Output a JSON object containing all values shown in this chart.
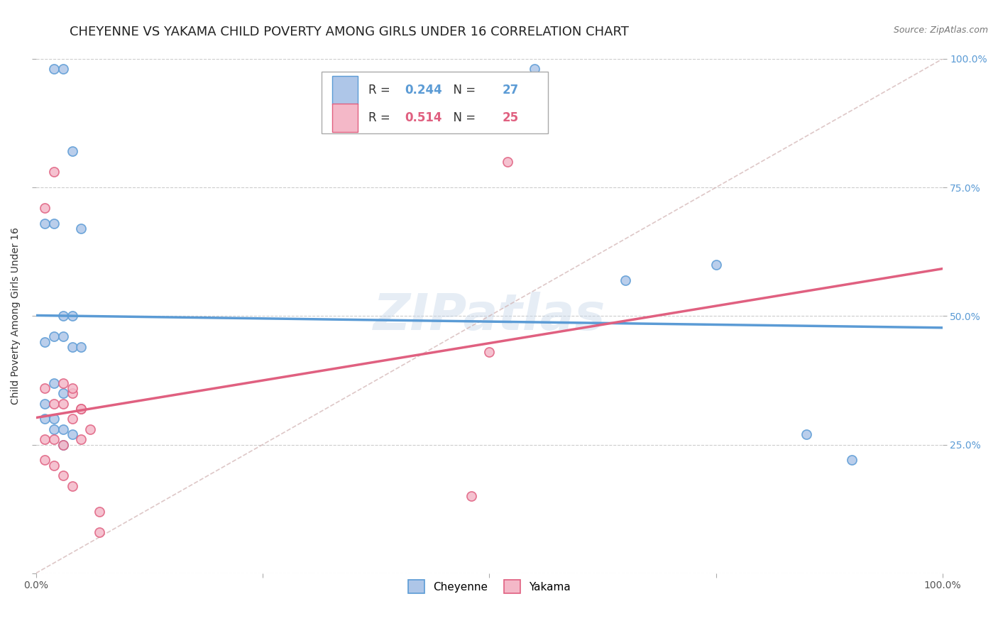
{
  "title": "CHEYENNE VS YAKAMA CHILD POVERTY AMONG GIRLS UNDER 16 CORRELATION CHART",
  "source": "Source: ZipAtlas.com",
  "ylabel": "Child Poverty Among Girls Under 16",
  "cheyenne_x": [
    2,
    3,
    4,
    5,
    1,
    2,
    3,
    4,
    1,
    2,
    3,
    4,
    5,
    2,
    3,
    1,
    1,
    2,
    2,
    3,
    4,
    3,
    55,
    65,
    75,
    85,
    90
  ],
  "cheyenne_y": [
    98,
    98,
    82,
    67,
    68,
    68,
    50,
    50,
    45,
    46,
    46,
    44,
    44,
    37,
    35,
    33,
    30,
    30,
    28,
    28,
    27,
    25,
    98,
    57,
    60,
    27,
    22
  ],
  "yakama_x": [
    1,
    2,
    3,
    4,
    5,
    6,
    4,
    5,
    1,
    2,
    3,
    4,
    5,
    1,
    2,
    3,
    1,
    2,
    3,
    4,
    7,
    7,
    52,
    50,
    48
  ],
  "yakama_y": [
    71,
    78,
    37,
    35,
    32,
    28,
    36,
    32,
    36,
    33,
    33,
    30,
    26,
    26,
    26,
    25,
    22,
    21,
    19,
    17,
    12,
    8,
    80,
    43,
    15
  ],
  "cheyenne_color": "#aec6e8",
  "cheyenne_edge": "#5b9bd5",
  "yakama_color": "#f4b8c8",
  "yakama_edge": "#e06080",
  "cheyenne_R": 0.244,
  "cheyenne_N": 27,
  "yakama_R": 0.514,
  "yakama_N": 25,
  "xlim": [
    0,
    100
  ],
  "ylim": [
    0,
    100
  ],
  "xtick_positions": [
    0,
    25,
    50,
    75,
    100
  ],
  "ytick_positions": [
    0,
    25,
    50,
    75,
    100
  ],
  "xticklabels": [
    "0.0%",
    "",
    "",
    "",
    "100.0%"
  ],
  "right_yticklabels": [
    "25.0%",
    "50.0%",
    "75.0%",
    "100.0%"
  ],
  "right_yticks": [
    25,
    50,
    75,
    100
  ],
  "grid_color": "#cccccc",
  "background_color": "#ffffff",
  "title_fontsize": 13,
  "axis_label_fontsize": 10,
  "tick_fontsize": 10,
  "marker_size": 90
}
